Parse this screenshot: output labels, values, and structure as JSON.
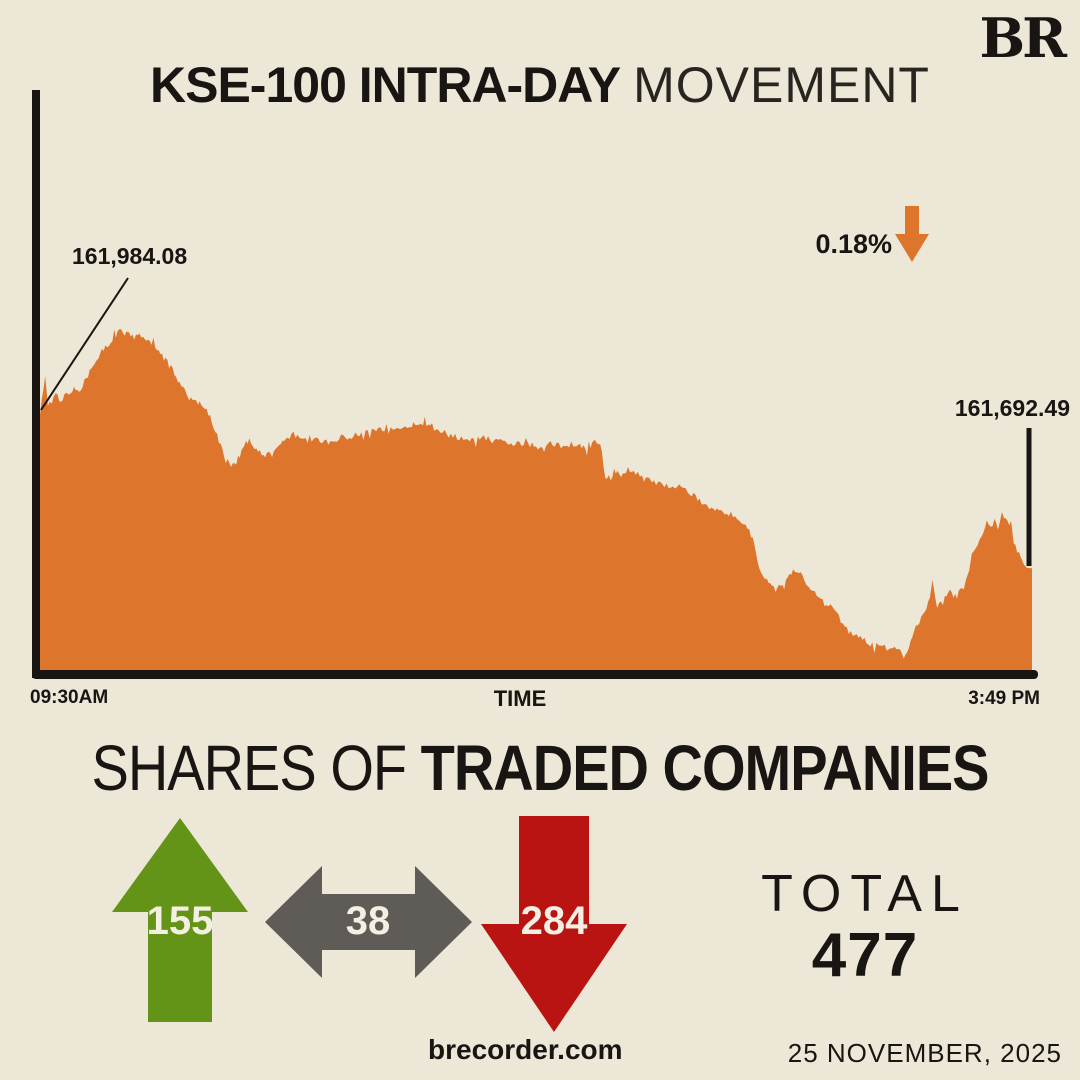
{
  "brand": {
    "logo": "BR",
    "site": "brecorder.com",
    "date": "25 NOVEMBER, 2025"
  },
  "title": {
    "bold": "KSE-100 INTRA-DAY",
    "light": "MOVEMENT"
  },
  "chart": {
    "open_label": "161,984.08",
    "close_label": "161,692.49",
    "change_pct": "0.18%",
    "direction": "down",
    "x_start": "09:30AM",
    "x_axis_title": "TIME",
    "x_end": "3:49 PM"
  },
  "chart_data": {
    "type": "area",
    "title": "KSE-100 INTRA-DAY MOVEMENT",
    "series_name": "KSE-100 index",
    "x_unit": "minutes since 09:30AM",
    "session": {
      "start": "09:30AM",
      "end": "3:49 PM",
      "minutes": 379
    },
    "open": 161984.08,
    "close": 161692.49,
    "change_pct": -0.18,
    "xlabel": "TIME",
    "grid": false,
    "points": [
      [
        0,
        161984.08
      ],
      [
        2,
        162057
      ],
      [
        3,
        161998
      ],
      [
        6,
        162023
      ],
      [
        8,
        162013
      ],
      [
        10,
        162028
      ],
      [
        11,
        162021
      ],
      [
        13,
        162036
      ],
      [
        15,
        162025
      ],
      [
        17,
        162051
      ],
      [
        19,
        162066
      ],
      [
        21,
        162086
      ],
      [
        23,
        162101
      ],
      [
        25,
        162114
      ],
      [
        27,
        162127
      ],
      [
        29,
        162137
      ],
      [
        31,
        162145
      ],
      [
        33,
        162135
      ],
      [
        34,
        162141
      ],
      [
        36,
        162131
      ],
      [
        38,
        162139
      ],
      [
        40,
        162133
      ],
      [
        42,
        162122
      ],
      [
        44,
        162114
      ],
      [
        46,
        162099
      ],
      [
        48,
        162089
      ],
      [
        50,
        162074
      ],
      [
        52,
        162059
      ],
      [
        54,
        162036
      ],
      [
        56,
        162028
      ],
      [
        57,
        162017
      ],
      [
        59,
        162011
      ],
      [
        61,
        162005
      ],
      [
        63,
        161996
      ],
      [
        65,
        161983
      ],
      [
        67,
        161956
      ],
      [
        69,
        161922
      ],
      [
        71,
        161903
      ],
      [
        73,
        161887
      ],
      [
        75,
        161895
      ],
      [
        77,
        161914
      ],
      [
        78,
        161931
      ],
      [
        80,
        161937
      ],
      [
        82,
        161925
      ],
      [
        84,
        161914
      ],
      [
        86,
        161906
      ],
      [
        88,
        161914
      ],
      [
        90,
        161925
      ],
      [
        92,
        161935
      ],
      [
        94,
        161941
      ],
      [
        96,
        161943
      ],
      [
        100,
        161941
      ],
      [
        103,
        161935
      ],
      [
        107,
        161937
      ],
      [
        111,
        161935
      ],
      [
        115,
        161941
      ],
      [
        119,
        161944
      ],
      [
        122,
        161950
      ],
      [
        126,
        161954
      ],
      [
        130,
        161958
      ],
      [
        134,
        161956
      ],
      [
        138,
        161958
      ],
      [
        142,
        161965
      ],
      [
        144,
        161971
      ],
      [
        145,
        161965
      ],
      [
        147,
        161969
      ],
      [
        149,
        161960
      ],
      [
        153,
        161952
      ],
      [
        157,
        161944
      ],
      [
        161,
        161941
      ],
      [
        165,
        161937
      ],
      [
        168,
        161941
      ],
      [
        172,
        161939
      ],
      [
        176,
        161935
      ],
      [
        180,
        161931
      ],
      [
        184,
        161929
      ],
      [
        188,
        161927
      ],
      [
        191,
        161924
      ],
      [
        195,
        161929
      ],
      [
        199,
        161925
      ],
      [
        203,
        161929
      ],
      [
        205,
        161924
      ],
      [
        207,
        161927
      ],
      [
        209,
        161922
      ],
      [
        211,
        161925
      ],
      [
        212,
        161929
      ],
      [
        214,
        161931
      ],
      [
        216,
        161866
      ],
      [
        218,
        161864
      ],
      [
        220,
        161876
      ],
      [
        222,
        161868
      ],
      [
        224,
        161880
      ],
      [
        226,
        161876
      ],
      [
        230,
        161864
      ],
      [
        233,
        161861
      ],
      [
        237,
        161853
      ],
      [
        241,
        161849
      ],
      [
        245,
        161847
      ],
      [
        249,
        161834
      ],
      [
        252,
        161823
      ],
      [
        255,
        161811
      ],
      [
        258,
        161803
      ],
      [
        260,
        161798
      ],
      [
        264,
        161794
      ],
      [
        268,
        161781
      ],
      [
        271,
        161765
      ],
      [
        273,
        161737
      ],
      [
        274,
        161708
      ],
      [
        277,
        161670
      ],
      [
        279,
        161662
      ],
      [
        281,
        161657
      ],
      [
        283,
        161657
      ],
      [
        285,
        161674
      ],
      [
        287,
        161685
      ],
      [
        290,
        161689
      ],
      [
        292,
        161670
      ],
      [
        296,
        161645
      ],
      [
        299,
        161636
      ],
      [
        302,
        161619
      ],
      [
        306,
        161594
      ],
      [
        309,
        161569
      ],
      [
        312,
        161561
      ],
      [
        315,
        161556
      ],
      [
        318,
        161546
      ],
      [
        322,
        161542
      ],
      [
        325,
        161537
      ],
      [
        328,
        161533
      ],
      [
        330,
        161521
      ],
      [
        332,
        161546
      ],
      [
        334,
        161569
      ],
      [
        336,
        161590
      ],
      [
        338,
        161607
      ],
      [
        340,
        161641
      ],
      [
        341,
        161666
      ],
      [
        342,
        161632
      ],
      [
        345,
        161626
      ],
      [
        347,
        161651
      ],
      [
        349,
        161643
      ],
      [
        351,
        161645
      ],
      [
        353,
        161657
      ],
      [
        355,
        161689
      ],
      [
        356,
        161721
      ],
      [
        359,
        161746
      ],
      [
        361,
        161765
      ],
      [
        364,
        161779
      ],
      [
        366,
        161782
      ],
      [
        369,
        161786
      ],
      [
        371,
        161769
      ],
      [
        372,
        161737
      ],
      [
        374,
        161721
      ],
      [
        376,
        161699
      ],
      [
        377,
        161693
      ],
      [
        379,
        161692.49
      ]
    ]
  },
  "shares": {
    "heading_light": "SHARES OF",
    "heading_bold": "TRADED COMPANIES",
    "advancers": "155",
    "unchanged": "38",
    "decliners": "284",
    "total_label": "TOTAL",
    "total_value": "477"
  },
  "colors": {
    "background": "#ece7d7",
    "area": "#dd752c",
    "ink": "#181512",
    "up_green": "#649417",
    "down_red": "#b91411",
    "neutral_gray": "#5f5c58",
    "arrow_text": "#f4efe3"
  }
}
